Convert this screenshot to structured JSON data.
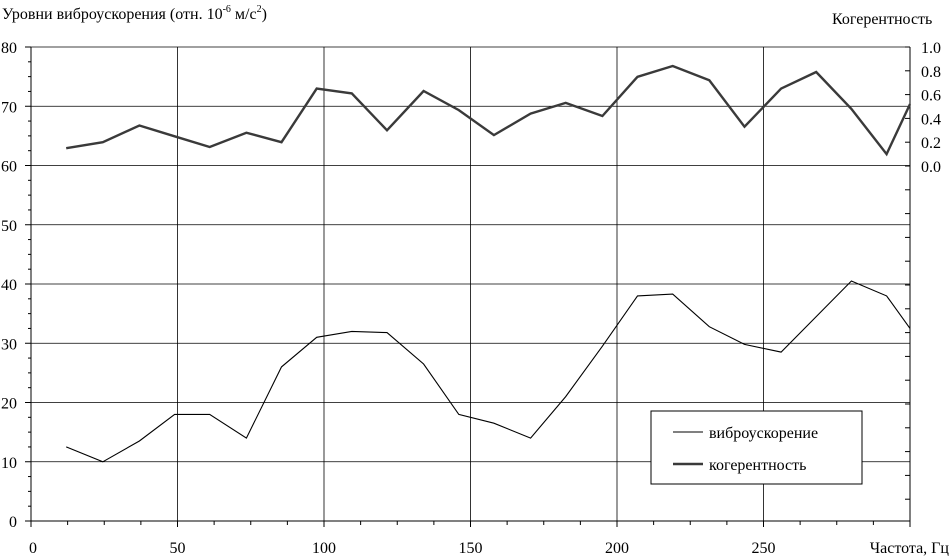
{
  "chart_data": {
    "type": "line",
    "title": "",
    "ylabel_left_prefix": "Уровни виброускорения (отн. 10",
    "ylabel_left_exp1": "-6",
    "ylabel_left_mid": " м/с",
    "ylabel_left_exp2": "2",
    "ylabel_left_suffix": ")",
    "ylabel_right": "Когерентность",
    "xlabel": "Частота, Гц",
    "xlim": [
      0,
      300
    ],
    "ylim_left": [
      0,
      80
    ],
    "ylim_right": [
      0,
      1.0
    ],
    "x_ticks": [
      "0",
      "50",
      "100",
      "150",
      "200",
      "250"
    ],
    "y_left_ticks": [
      "0",
      "10",
      "20",
      "30",
      "40",
      "50",
      "60",
      "70",
      "80"
    ],
    "y_right_ticks": [
      "0.0",
      "0.2",
      "0.4",
      "0.6",
      "0.8",
      "1.0"
    ],
    "grid": true,
    "legend_position": "bottom-right",
    "series": [
      {
        "name": "виброускорение",
        "axis": "left",
        "x": [
          12,
          24.5,
          37,
          49,
          61,
          73.5,
          85.5,
          97.5,
          109.5,
          121.5,
          134,
          146,
          158,
          170.5,
          182.5,
          195,
          207,
          219,
          231.5,
          243.5,
          256,
          268,
          280,
          292,
          300
        ],
        "values": [
          12.5,
          10,
          13.5,
          18,
          18,
          14,
          26,
          31,
          32,
          31.8,
          26.5,
          18,
          16.5,
          14,
          21,
          29.5,
          38,
          38.3,
          32.8,
          29.8,
          28.5,
          34.5,
          40.5,
          38,
          32.5
        ]
      },
      {
        "name": "когерентность",
        "axis": "right",
        "x": [
          12,
          24.5,
          37,
          49,
          61,
          73.5,
          85.5,
          97.5,
          109.5,
          121.5,
          134,
          146,
          158,
          170.5,
          182.5,
          195,
          207,
          219,
          231.5,
          243.5,
          256,
          268,
          280,
          292,
          300
        ],
        "values": [
          0.15,
          0.2,
          0.34,
          0.25,
          0.16,
          0.28,
          0.2,
          0.65,
          0.61,
          0.3,
          0.63,
          0.47,
          0.26,
          0.44,
          0.53,
          0.42,
          0.75,
          0.84,
          0.72,
          0.33,
          0.65,
          0.79,
          0.48,
          0.1,
          0.52
        ]
      }
    ]
  }
}
